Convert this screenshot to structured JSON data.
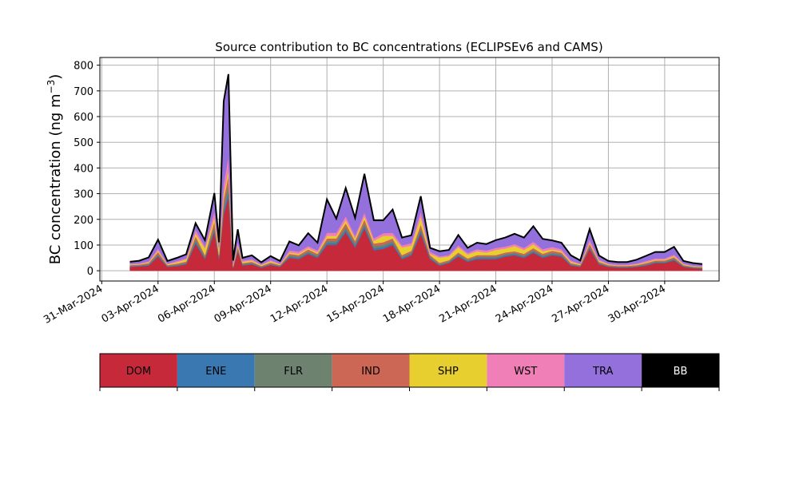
{
  "chart_data": {
    "type": "area",
    "title": "Source contribution to BC concentrations (ECLIPSEv6 and CAMS)",
    "ylabel": {
      "main": "BC concentration (ng m",
      "sup": "−3",
      "close": ")"
    },
    "xlabel": "",
    "ylim": [
      -40,
      830
    ],
    "yticks": [
      0,
      100,
      200,
      300,
      400,
      500,
      600,
      700,
      800
    ],
    "x_axis_format": "day-month-year",
    "xlim_days_from_31_Mar_2024": [
      -0.1,
      32.9
    ],
    "xticks": [
      "31-Mar-2024",
      "03-Apr-2024",
      "06-Apr-2024",
      "09-Apr-2024",
      "12-Apr-2024",
      "15-Apr-2024",
      "18-Apr-2024",
      "21-Apr-2024",
      "24-Apr-2024",
      "27-Apr-2024",
      "30-Apr-2024"
    ],
    "grid": true,
    "stacked": true,
    "stack_order": [
      "DOM",
      "ENE",
      "FLR",
      "IND",
      "SHP",
      "WST",
      "TRA",
      "BB"
    ],
    "x": [
      "01-Apr-2024 12:00",
      "02-Apr-2024 00:00",
      "02-Apr-2024 12:00",
      "03-Apr-2024 00:00",
      "03-Apr-2024 12:00",
      "04-Apr-2024 00:00",
      "04-Apr-2024 12:00",
      "05-Apr-2024 00:00",
      "05-Apr-2024 12:00",
      "06-Apr-2024 00:00",
      "06-Apr-2024 06:00",
      "06-Apr-2024 12:00",
      "06-Apr-2024 18:00",
      "07-Apr-2024 00:00",
      "07-Apr-2024 06:00",
      "07-Apr-2024 12:00",
      "08-Apr-2024 00:00",
      "08-Apr-2024 12:00",
      "09-Apr-2024 00:00",
      "09-Apr-2024 12:00",
      "10-Apr-2024 00:00",
      "10-Apr-2024 12:00",
      "11-Apr-2024 00:00",
      "11-Apr-2024 12:00",
      "12-Apr-2024 00:00",
      "12-Apr-2024 12:00",
      "13-Apr-2024 00:00",
      "13-Apr-2024 12:00",
      "14-Apr-2024 00:00",
      "14-Apr-2024 12:00",
      "15-Apr-2024 00:00",
      "15-Apr-2024 12:00",
      "16-Apr-2024 00:00",
      "16-Apr-2024 12:00",
      "17-Apr-2024 00:00",
      "17-Apr-2024 12:00",
      "18-Apr-2024 00:00",
      "18-Apr-2024 12:00",
      "19-Apr-2024 00:00",
      "19-Apr-2024 12:00",
      "20-Apr-2024 00:00",
      "20-Apr-2024 12:00",
      "21-Apr-2024 00:00",
      "21-Apr-2024 12:00",
      "22-Apr-2024 00:00",
      "22-Apr-2024 12:00",
      "23-Apr-2024 00:00",
      "23-Apr-2024 12:00",
      "24-Apr-2024 00:00",
      "24-Apr-2024 12:00",
      "25-Apr-2024 00:00",
      "25-Apr-2024 12:00",
      "26-Apr-2024 00:00",
      "26-Apr-2024 12:00",
      "27-Apr-2024 00:00",
      "27-Apr-2024 12:00",
      "28-Apr-2024 00:00",
      "28-Apr-2024 12:00",
      "29-Apr-2024 00:00",
      "29-Apr-2024 12:00",
      "30-Apr-2024 00:00",
      "30-Apr-2024 12:00",
      "01-May-2024 00:00",
      "01-May-2024 12:00",
      "02-May-2024 00:00"
    ],
    "series": [
      {
        "name": "DOM",
        "color": "#c62a3a",
        "values": [
          15,
          17,
          20,
          55,
          15,
          18,
          25,
          105,
          45,
          150,
          45,
          220,
          285,
          10,
          75,
          20,
          25,
          12,
          22,
          15,
          50,
          45,
          65,
          50,
          100,
          100,
          150,
          90,
          165,
          80,
          85,
          100,
          45,
          60,
          145,
          45,
          20,
          30,
          55,
          35,
          45,
          45,
          45,
          55,
          60,
          50,
          70,
          50,
          60,
          55,
          20,
          15,
          85,
          25,
          15,
          12,
          12,
          15,
          20,
          30,
          30,
          40,
          15,
          10,
          8
        ]
      },
      {
        "name": "ENE",
        "color": "#3978b0",
        "values": [
          2,
          2,
          3,
          5,
          2,
          3,
          3,
          8,
          5,
          10,
          5,
          15,
          20,
          2,
          5,
          3,
          3,
          2,
          3,
          2,
          5,
          5,
          5,
          5,
          8,
          8,
          10,
          8,
          10,
          8,
          8,
          8,
          5,
          5,
          10,
          5,
          3,
          3,
          5,
          4,
          5,
          5,
          5,
          5,
          5,
          5,
          5,
          5,
          5,
          5,
          3,
          2,
          5,
          3,
          2,
          2,
          2,
          2,
          3,
          3,
          3,
          4,
          2,
          2,
          2
        ]
      },
      {
        "name": "FLR",
        "color": "#6e8270",
        "values": [
          2,
          2,
          3,
          5,
          2,
          3,
          3,
          10,
          5,
          12,
          5,
          20,
          30,
          2,
          5,
          3,
          3,
          2,
          3,
          2,
          5,
          5,
          5,
          5,
          8,
          8,
          10,
          8,
          10,
          8,
          8,
          8,
          5,
          5,
          10,
          5,
          3,
          3,
          5,
          4,
          5,
          5,
          5,
          5,
          5,
          5,
          5,
          5,
          5,
          5,
          3,
          2,
          5,
          3,
          2,
          2,
          2,
          2,
          3,
          3,
          3,
          4,
          2,
          2,
          2
        ]
      },
      {
        "name": "IND",
        "color": "#cc6655",
        "values": [
          3,
          3,
          4,
          8,
          3,
          4,
          5,
          12,
          6,
          20,
          6,
          25,
          35,
          3,
          8,
          4,
          4,
          3,
          4,
          3,
          6,
          6,
          8,
          6,
          10,
          10,
          15,
          10,
          15,
          10,
          10,
          10,
          6,
          8,
          15,
          6,
          5,
          5,
          6,
          5,
          6,
          6,
          6,
          6,
          6,
          6,
          8,
          6,
          8,
          6,
          4,
          3,
          10,
          4,
          3,
          3,
          3,
          3,
          4,
          4,
          4,
          5,
          3,
          2,
          2
        ]
      },
      {
        "name": "SHP",
        "color": "#e8cf30",
        "values": [
          2,
          2,
          3,
          5,
          3,
          5,
          8,
          10,
          25,
          15,
          20,
          20,
          20,
          5,
          8,
          5,
          5,
          3,
          5,
          3,
          5,
          5,
          5,
          5,
          10,
          10,
          12,
          10,
          12,
          10,
          25,
          10,
          30,
          20,
          30,
          5,
          20,
          15,
          20,
          15,
          15,
          10,
          20,
          15,
          20,
          15,
          15,
          10,
          5,
          5,
          5,
          3,
          5,
          4,
          3,
          2,
          2,
          3,
          3,
          3,
          3,
          4,
          3,
          2,
          2
        ]
      },
      {
        "name": "WST",
        "color": "#f07fb8",
        "values": [
          3,
          3,
          4,
          8,
          3,
          5,
          5,
          15,
          8,
          25,
          10,
          40,
          55,
          3,
          10,
          5,
          5,
          3,
          5,
          3,
          8,
          8,
          8,
          8,
          12,
          12,
          15,
          10,
          15,
          10,
          10,
          12,
          8,
          10,
          20,
          8,
          5,
          5,
          8,
          6,
          8,
          8,
          8,
          8,
          8,
          8,
          10,
          8,
          10,
          8,
          5,
          3,
          12,
          5,
          3,
          3,
          3,
          3,
          5,
          5,
          5,
          6,
          3,
          2,
          2
        ]
      },
      {
        "name": "TRA",
        "color": "#9370db",
        "values": [
          8,
          10,
          15,
          35,
          10,
          12,
          15,
          25,
          25,
          70,
          20,
          320,
          320,
          15,
          50,
          10,
          15,
          8,
          15,
          10,
          35,
          25,
          50,
          30,
          130,
          55,
          110,
          70,
          150,
          70,
          50,
          90,
          30,
          30,
          60,
          15,
          20,
          20,
          40,
          20,
          25,
          25,
          30,
          35,
          40,
          40,
          60,
          40,
          25,
          25,
          20,
          12,
          40,
          15,
          10,
          10,
          10,
          15,
          20,
          25,
          25,
          30,
          10,
          10,
          8
        ]
      },
      {
        "name": "BB",
        "color": "#000000",
        "values": [
          0,
          0,
          0,
          0,
          0,
          0,
          0,
          0,
          0,
          0,
          0,
          0,
          0,
          0,
          0,
          0,
          0,
          0,
          0,
          0,
          0,
          0,
          0,
          0,
          0,
          0,
          0,
          0,
          0,
          0,
          0,
          0,
          0,
          0,
          0,
          0,
          0,
          0,
          0,
          0,
          0,
          0,
          0,
          0,
          0,
          0,
          0,
          0,
          0,
          0,
          0,
          0,
          0,
          0,
          0,
          0,
          0,
          0,
          0,
          0,
          0,
          0,
          0,
          0,
          0
        ]
      }
    ]
  }
}
